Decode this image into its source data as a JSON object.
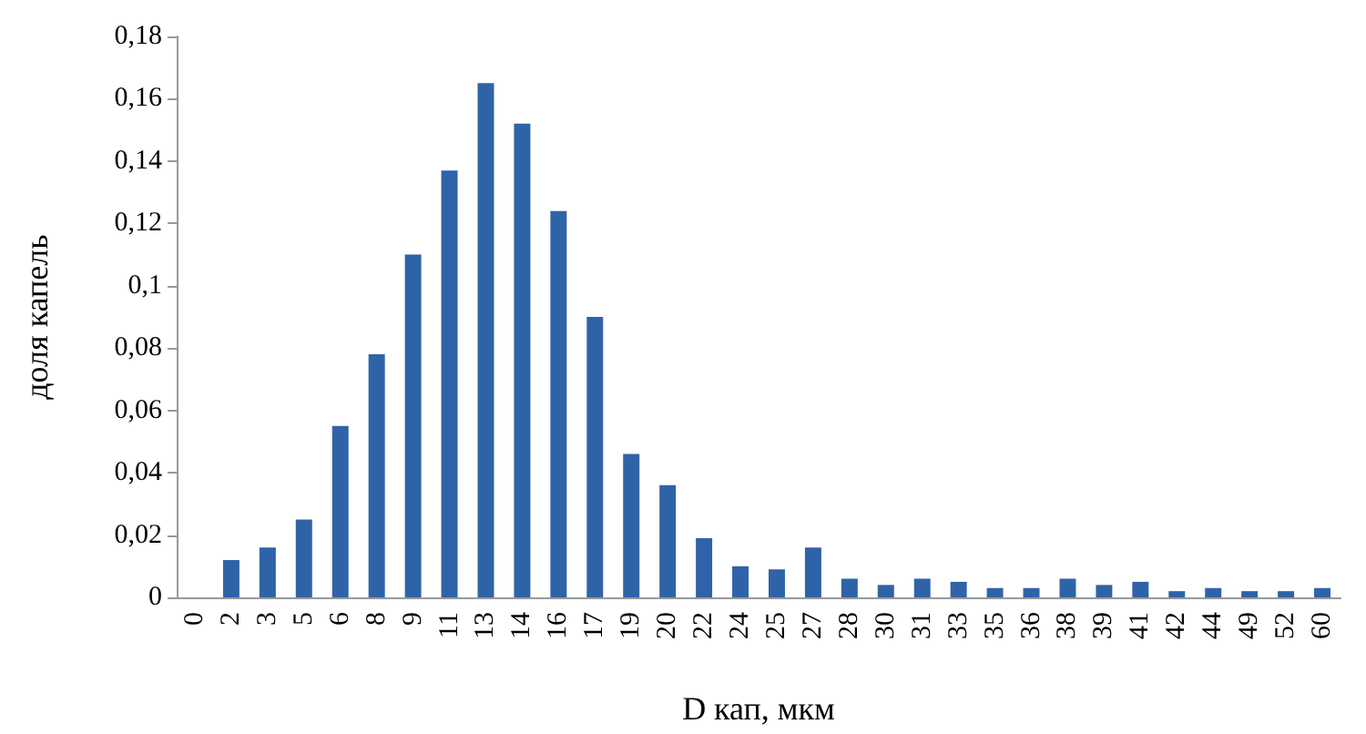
{
  "chart_data": {
    "type": "bar",
    "xlabel": "D кап, мкм",
    "ylabel": "доля капель",
    "categories": [
      "0",
      "2",
      "3",
      "5",
      "6",
      "8",
      "9",
      "11",
      "13",
      "14",
      "16",
      "17",
      "19",
      "20",
      "22",
      "24",
      "25",
      "27",
      "28",
      "30",
      "31",
      "33",
      "35",
      "36",
      "38",
      "39",
      "41",
      "42",
      "44",
      "49",
      "52",
      "60"
    ],
    "values": [
      0,
      0.012,
      0.016,
      0.025,
      0.055,
      0.078,
      0.11,
      0.137,
      0.165,
      0.152,
      0.124,
      0.09,
      0.046,
      0.036,
      0.019,
      0.01,
      0.009,
      0.016,
      0.006,
      0.004,
      0.006,
      0.005,
      0.003,
      0.003,
      0.006,
      0.004,
      0.005,
      0.002,
      0.003,
      0.002,
      0.002,
      0.003
    ],
    "color": "#2f63a8",
    "ylim": [
      0,
      0.18
    ],
    "yticks": [
      {
        "value": 0,
        "label": "0"
      },
      {
        "value": 0.02,
        "label": "0,02"
      },
      {
        "value": 0.04,
        "label": "0,04"
      },
      {
        "value": 0.06,
        "label": "0,06"
      },
      {
        "value": 0.08,
        "label": "0,08"
      },
      {
        "value": 0.1,
        "label": "0,1"
      },
      {
        "value": 0.12,
        "label": "0,12"
      },
      {
        "value": 0.14,
        "label": "0,14"
      },
      {
        "value": 0.16,
        "label": "0,16"
      },
      {
        "value": 0.18,
        "label": "0,18"
      }
    ],
    "grid": false
  }
}
